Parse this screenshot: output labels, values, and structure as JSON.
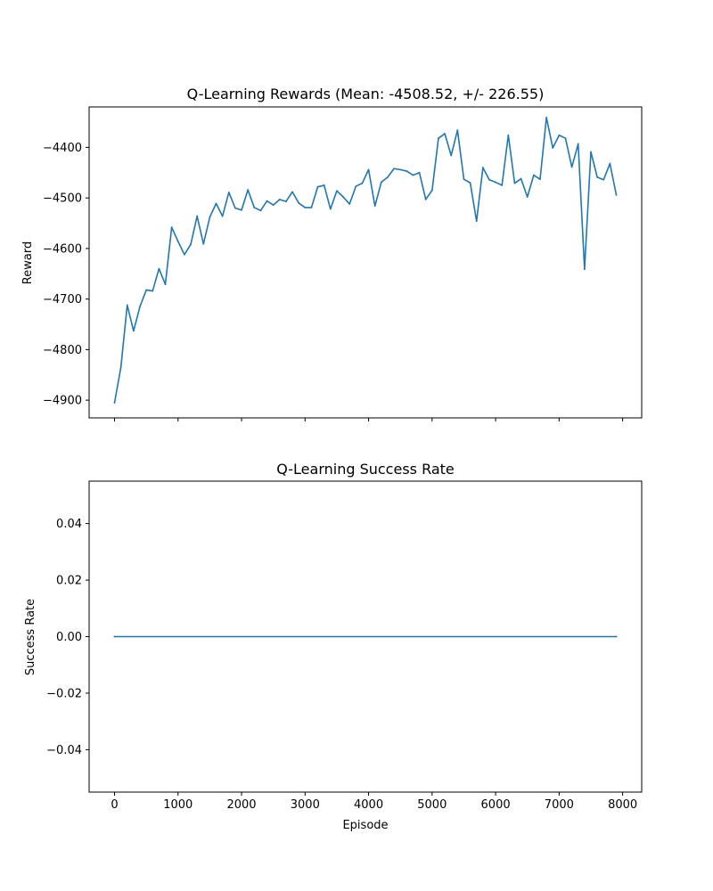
{
  "chart_data": [
    {
      "type": "line",
      "title": "Q-Learning Rewards (Mean: -4508.52, +/- 226.55)",
      "xlabel": "",
      "ylabel": "Reward",
      "xlim": [
        -400,
        8300
      ],
      "ylim": [
        -4935,
        -4320
      ],
      "xticks": [
        0,
        1000,
        2000,
        3000,
        4000,
        5000,
        6000,
        7000,
        8000
      ],
      "xticklabels_visible": false,
      "yticks": [
        -4900,
        -4800,
        -4700,
        -4600,
        -4500,
        -4400
      ],
      "yticklabels": [
        "−4900",
        "−4800",
        "−4700",
        "−4600",
        "−4500",
        "−4400"
      ],
      "grid": false,
      "series": [
        {
          "color": "#1f77b4",
          "x": [
            0,
            100,
            200,
            300,
            400,
            500,
            600,
            700,
            800,
            900,
            1000,
            1100,
            1200,
            1300,
            1400,
            1500,
            1600,
            1700,
            1800,
            1900,
            2000,
            2100,
            2200,
            2300,
            2400,
            2500,
            2600,
            2700,
            2800,
            2900,
            3000,
            3100,
            3200,
            3300,
            3400,
            3500,
            3600,
            3700,
            3800,
            3900,
            4000,
            4100,
            4200,
            4300,
            4400,
            4500,
            4600,
            4700,
            4800,
            4900,
            5000,
            5100,
            5200,
            5300,
            5400,
            5500,
            5600,
            5700,
            5800,
            5900,
            6000,
            6100,
            6200,
            6300,
            6400,
            6500,
            6600,
            6700,
            6800,
            6900,
            7000,
            7100,
            7200,
            7300,
            7400,
            7500,
            7600,
            7700,
            7800,
            7900
          ],
          "y": [
            -4905,
            -4835,
            -4712,
            -4763,
            -4715,
            -4682,
            -4684,
            -4640,
            -4671,
            -4558,
            -4586,
            -4612,
            -4592,
            -4536,
            -4591,
            -4538,
            -4511,
            -4536,
            -4489,
            -4520,
            -4524,
            -4484,
            -4519,
            -4525,
            -4506,
            -4514,
            -4503,
            -4507,
            -4488,
            -4510,
            -4519,
            -4519,
            -4478,
            -4475,
            -4522,
            -4486,
            -4498,
            -4512,
            -4477,
            -4471,
            -4444,
            -4516,
            -4469,
            -4459,
            -4442,
            -4444,
            -4447,
            -4455,
            -4450,
            -4503,
            -4485,
            -4382,
            -4373,
            -4416,
            -4366,
            -4463,
            -4470,
            -4546,
            -4440,
            -4464,
            -4469,
            -4475,
            -4376,
            -4471,
            -4462,
            -4498,
            -4455,
            -4463,
            -4341,
            -4401,
            -4376,
            -4382,
            -4439,
            -4393,
            -4641,
            -4409,
            -4459,
            -4464,
            -4432,
            -4494
          ]
        }
      ]
    },
    {
      "type": "line",
      "title": "Q-Learning Success Rate",
      "xlabel": "Episode",
      "ylabel": "Success Rate",
      "xlim": [
        -400,
        8300
      ],
      "ylim": [
        -0.055,
        0.055
      ],
      "xticks": [
        0,
        1000,
        2000,
        3000,
        4000,
        5000,
        6000,
        7000,
        8000
      ],
      "xticklabels": [
        "0",
        "1000",
        "2000",
        "3000",
        "4000",
        "5000",
        "6000",
        "7000",
        "8000"
      ],
      "yticks": [
        -0.04,
        -0.02,
        0.0,
        0.02,
        0.04
      ],
      "yticklabels": [
        "−0.04",
        "−0.02",
        "0.00",
        "0.02",
        "0.04"
      ],
      "grid": false,
      "series": [
        {
          "color": "#1f77b4",
          "x": [
            0,
            7900
          ],
          "y": [
            0.0,
            0.0
          ]
        }
      ]
    }
  ]
}
